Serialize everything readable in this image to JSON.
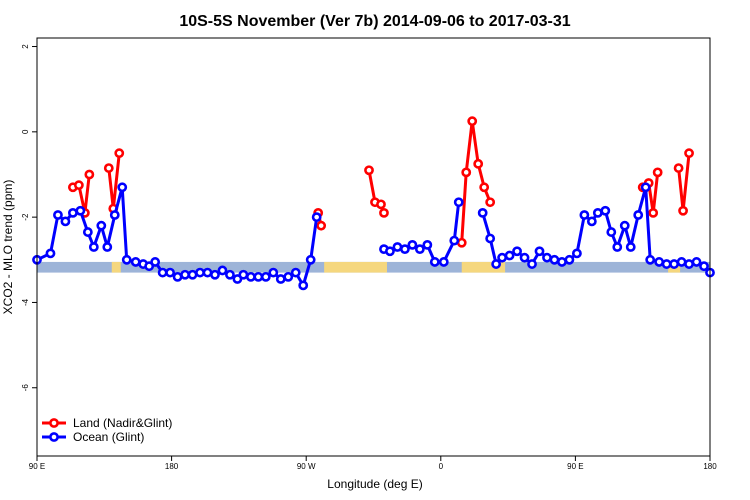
{
  "chart_data": {
    "type": "line",
    "title": "10S-5S November (Ver 7b)   2014-09-06 to 2017-03-31",
    "xlabel": "Longitude (deg E)",
    "ylabel": "XCO2 - MLO trend (ppm)",
    "xlim": [
      90,
      540
    ],
    "ylim": [
      -7.6,
      2.2
    ],
    "x_ticks": [
      {
        "value": 90,
        "label": "90 E"
      },
      {
        "value": 180,
        "label": "180"
      },
      {
        "value": 270,
        "label": "90 W"
      },
      {
        "value": 360,
        "label": "0"
      },
      {
        "value": 450,
        "label": "90 E"
      },
      {
        "value": 540,
        "label": "180"
      }
    ],
    "y_ticks": [
      {
        "value": 2,
        "label": "2"
      },
      {
        "value": 0,
        "label": "0"
      },
      {
        "value": -2,
        "label": "-2"
      },
      {
        "value": -4,
        "label": "-4"
      },
      {
        "value": -6,
        "label": "-6"
      }
    ],
    "grid": false,
    "legend_position": "bottom-left",
    "map_strip": {
      "y_range": [
        -3.3,
        -3.05
      ],
      "ocean_color": "#9db4d8",
      "land_color": "#f5d77e",
      "land_ranges": [
        [
          140,
          146
        ],
        [
          282,
          324
        ],
        [
          374,
          403
        ],
        [
          512,
          520
        ]
      ]
    },
    "series": [
      {
        "name": "Land (Nadir&Glint)",
        "color": "#ff0000",
        "segments": [
          [
            [
              114,
              -1.3
            ],
            [
              118,
              -1.25
            ],
            [
              122,
              -1.9
            ],
            [
              125,
              -1.0
            ]
          ],
          [
            [
              138,
              -0.85
            ],
            [
              141,
              -1.8
            ],
            [
              145,
              -0.5
            ]
          ],
          [
            [
              278,
              -1.9
            ],
            [
              280,
              -2.2
            ]
          ],
          [
            [
              312,
              -0.9
            ],
            [
              316,
              -1.65
            ],
            [
              320,
              -1.7
            ],
            [
              322,
              -1.9
            ]
          ],
          [
            [
              374,
              -2.6
            ],
            [
              377,
              -0.95
            ],
            [
              381,
              0.25
            ],
            [
              385,
              -0.75
            ],
            [
              389,
              -1.3
            ],
            [
              393,
              -1.65
            ]
          ],
          [
            [
              495,
              -1.3
            ],
            [
              499,
              -1.2
            ],
            [
              502,
              -1.9
            ],
            [
              505,
              -0.95
            ]
          ],
          [
            [
              519,
              -0.85
            ],
            [
              522,
              -1.85
            ],
            [
              526,
              -0.5
            ]
          ]
        ]
      },
      {
        "name": "Ocean (Glint)",
        "color": "#0000ff",
        "segments": [
          [
            [
              90,
              -3.0
            ],
            [
              99,
              -2.85
            ],
            [
              104,
              -1.95
            ],
            [
              109,
              -2.1
            ],
            [
              114,
              -1.9
            ],
            [
              119,
              -1.85
            ],
            [
              124,
              -2.35
            ],
            [
              128,
              -2.7
            ],
            [
              133,
              -2.2
            ],
            [
              137,
              -2.7
            ],
            [
              142,
              -1.95
            ],
            [
              147,
              -1.3
            ],
            [
              150,
              -3.0
            ],
            [
              156,
              -3.05
            ],
            [
              161,
              -3.1
            ],
            [
              165,
              -3.15
            ],
            [
              169,
              -3.05
            ],
            [
              174,
              -3.3
            ],
            [
              179,
              -3.3
            ],
            [
              184,
              -3.4
            ],
            [
              189,
              -3.35
            ],
            [
              194,
              -3.35
            ],
            [
              199,
              -3.3
            ],
            [
              204,
              -3.3
            ],
            [
              209,
              -3.35
            ],
            [
              214,
              -3.25
            ],
            [
              219,
              -3.35
            ],
            [
              224,
              -3.45
            ],
            [
              228,
              -3.35
            ],
            [
              233,
              -3.4
            ],
            [
              238,
              -3.4
            ],
            [
              243,
              -3.4
            ],
            [
              248,
              -3.3
            ],
            [
              253,
              -3.45
            ],
            [
              258,
              -3.4
            ],
            [
              263,
              -3.3
            ],
            [
              268,
              -3.6
            ],
            [
              273,
              -3.0
            ],
            [
              277,
              -2.0
            ]
          ],
          [
            [
              322,
              -2.75
            ],
            [
              326,
              -2.8
            ],
            [
              331,
              -2.7
            ],
            [
              336,
              -2.75
            ],
            [
              341,
              -2.65
            ],
            [
              346,
              -2.75
            ],
            [
              351,
              -2.65
            ],
            [
              356,
              -3.05
            ],
            [
              362,
              -3.05
            ],
            [
              369,
              -2.55
            ],
            [
              372,
              -1.65
            ]
          ],
          [
            [
              388,
              -1.9
            ],
            [
              393,
              -2.5
            ],
            [
              397,
              -3.1
            ],
            [
              401,
              -2.95
            ],
            [
              406,
              -2.9
            ],
            [
              411,
              -2.8
            ],
            [
              416,
              -2.95
            ],
            [
              421,
              -3.1
            ],
            [
              426,
              -2.8
            ],
            [
              431,
              -2.95
            ],
            [
              436,
              -3.0
            ],
            [
              441,
              -3.05
            ],
            [
              446,
              -3.0
            ],
            [
              451,
              -2.85
            ],
            [
              456,
              -1.95
            ],
            [
              461,
              -2.1
            ],
            [
              465,
              -1.9
            ],
            [
              470,
              -1.85
            ],
            [
              474,
              -2.35
            ],
            [
              478,
              -2.7
            ],
            [
              483,
              -2.2
            ],
            [
              487,
              -2.7
            ],
            [
              492,
              -1.95
            ],
            [
              497,
              -1.3
            ],
            [
              500,
              -3.0
            ],
            [
              506,
              -3.05
            ],
            [
              511,
              -3.1
            ],
            [
              516,
              -3.1
            ],
            [
              521,
              -3.05
            ],
            [
              526,
              -3.1
            ],
            [
              531,
              -3.05
            ],
            [
              536,
              -3.15
            ],
            [
              540,
              -3.3
            ]
          ]
        ]
      }
    ]
  }
}
